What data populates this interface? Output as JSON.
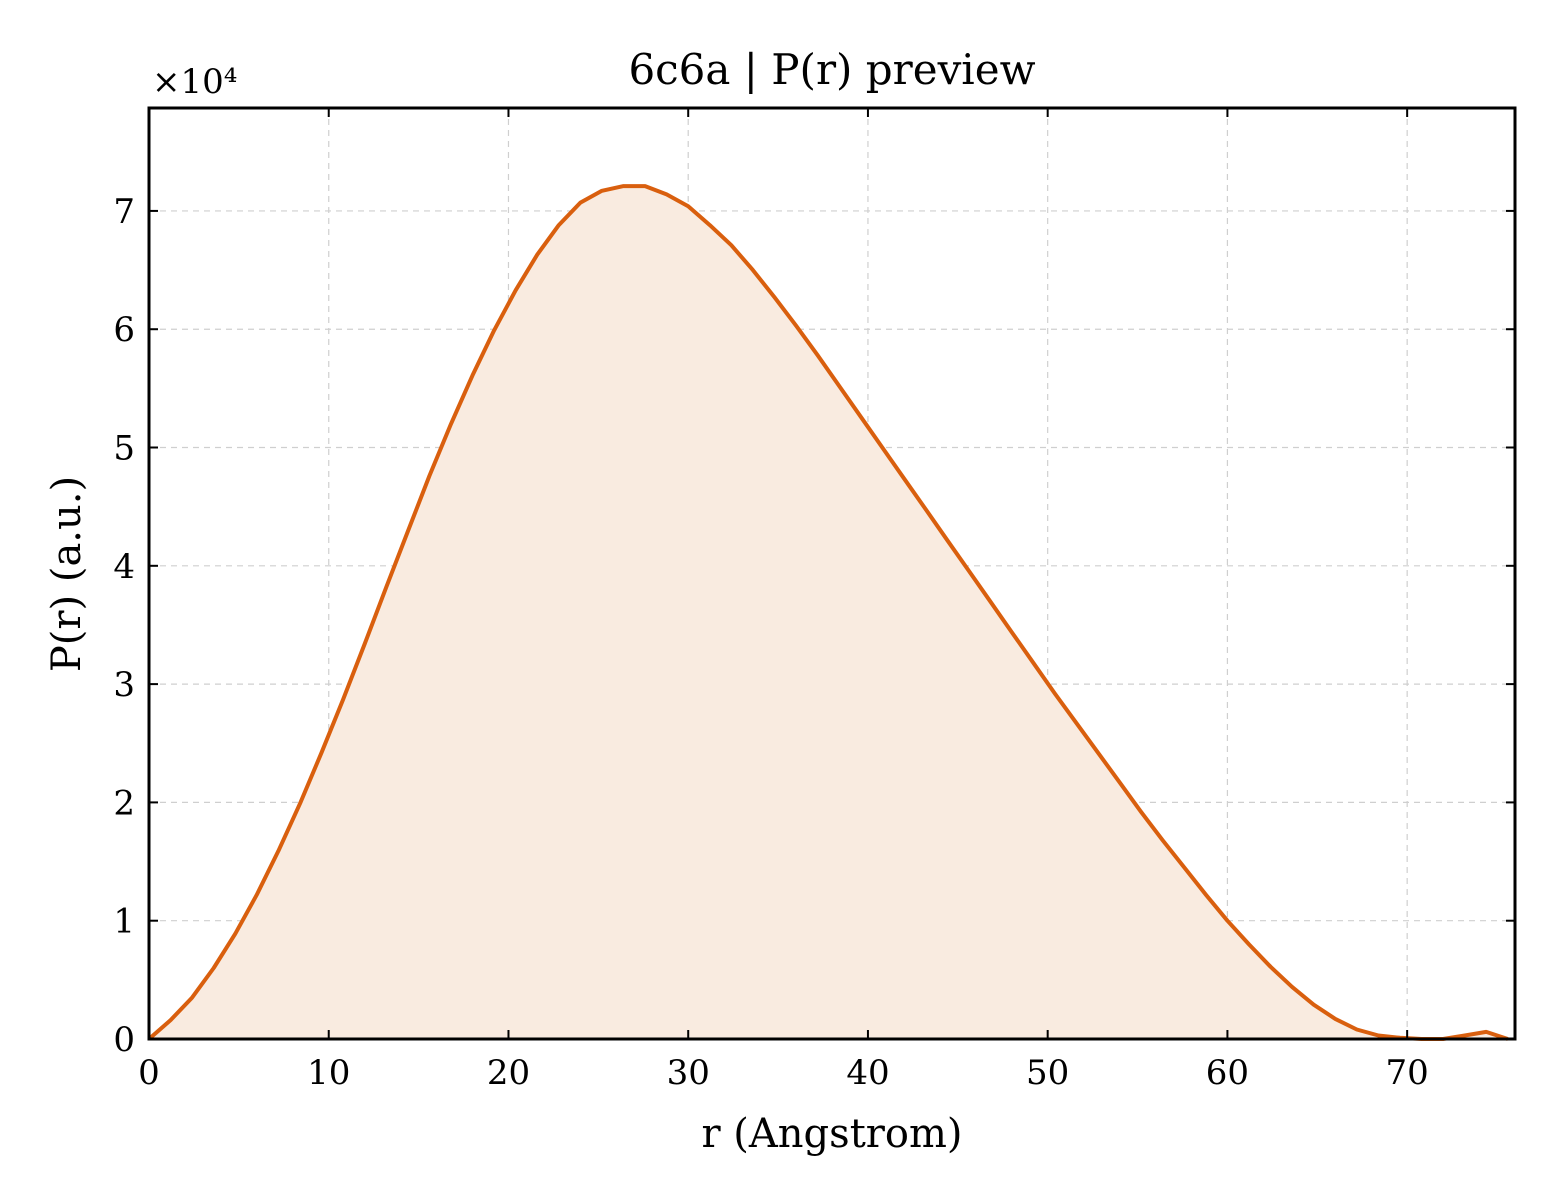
{
  "chart_data": {
    "type": "area",
    "title": "6c6a | P(r) preview",
    "xlabel": "r (Angstrom)",
    "ylabel": "P(r) (a.u.)",
    "y_multiplier_label": "×10⁴",
    "xlim": [
      0,
      76
    ],
    "ylim": [
      0,
      78700
    ],
    "xticks": [
      0,
      10,
      20,
      30,
      40,
      50,
      60,
      70
    ],
    "yticks": [
      0,
      10000,
      20000,
      30000,
      40000,
      50000,
      60000,
      70000
    ],
    "ytick_labels": [
      "0",
      "1",
      "2",
      "3",
      "4",
      "5",
      "6",
      "7"
    ],
    "grid": true,
    "line_color": "#d95f0e",
    "fill_color": "#f9ebe0",
    "series": [
      {
        "x": [
          0,
          1.2,
          2.4,
          3.6,
          4.8,
          6.0,
          7.2,
          8.4,
          9.6,
          10.8,
          12.0,
          13.2,
          14.4,
          15.6,
          16.8,
          18.0,
          19.2,
          20.4,
          21.6,
          22.8,
          24.0,
          25.2,
          26.4,
          27.6,
          28.8,
          30.0,
          31.2,
          32.4,
          33.6,
          34.8,
          36.0,
          37.2,
          38.4,
          39.6,
          40.8,
          42.0,
          43.2,
          44.4,
          45.6,
          46.8,
          48.0,
          49.2,
          50.4,
          51.6,
          52.8,
          54.0,
          55.2,
          56.4,
          57.6,
          58.8,
          60.0,
          61.2,
          62.4,
          63.6,
          64.8,
          66.0,
          67.2,
          68.4,
          69.6,
          70.8,
          72.0,
          73.2,
          74.4,
          75.6
        ],
        "y": [
          0,
          1600,
          3500,
          6000,
          8900,
          12200,
          15900,
          19900,
          24200,
          28700,
          33400,
          38200,
          42900,
          47600,
          52000,
          56100,
          59900,
          63300,
          66300,
          68800,
          70700,
          71700,
          72100,
          72100,
          71400,
          70400,
          68800,
          67100,
          65000,
          62700,
          60300,
          57800,
          55200,
          52600,
          50000,
          47400,
          44800,
          42200,
          39600,
          37000,
          34400,
          31800,
          29200,
          26700,
          24200,
          21700,
          19200,
          16800,
          14500,
          12200,
          10000,
          8000,
          6100,
          4400,
          2900,
          1700,
          800,
          300,
          100,
          0,
          0,
          300,
          600,
          0
        ]
      }
    ]
  }
}
